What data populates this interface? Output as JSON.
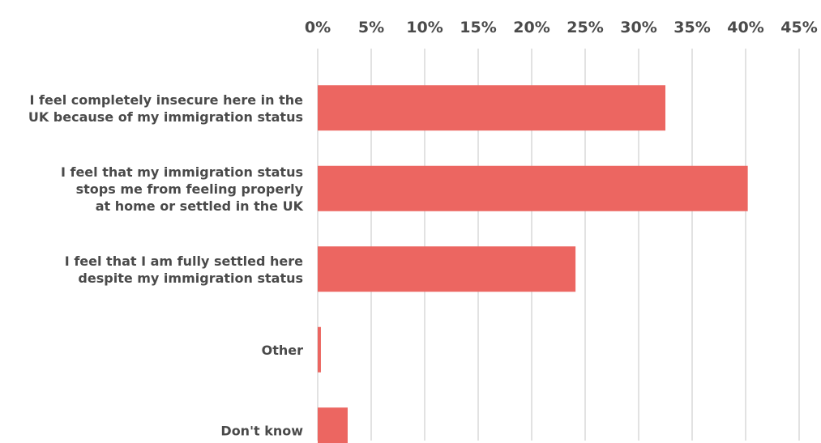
{
  "chart_data": {
    "type": "bar",
    "orientation": "horizontal",
    "title": "",
    "xlabel": "",
    "ylabel": "",
    "xlim": [
      0,
      45
    ],
    "x_ticks": [
      0,
      5,
      10,
      15,
      20,
      25,
      30,
      35,
      40,
      45
    ],
    "x_tick_format": "percent",
    "axis_position": "top",
    "grid": true,
    "bar_color": "#ec6661",
    "categories": [
      [
        "I feel completely insecure here in the",
        "UK because of my immigration status"
      ],
      [
        "I feel that my immigration status",
        "stops me from feeling properly",
        "at home or settled in the UK"
      ],
      [
        "I feel that I am fully settled here",
        "despite my immigration status"
      ],
      [
        "Other"
      ],
      [
        "Don't know"
      ]
    ],
    "values": [
      32.5,
      40.2,
      24.1,
      0.3,
      2.8
    ]
  }
}
